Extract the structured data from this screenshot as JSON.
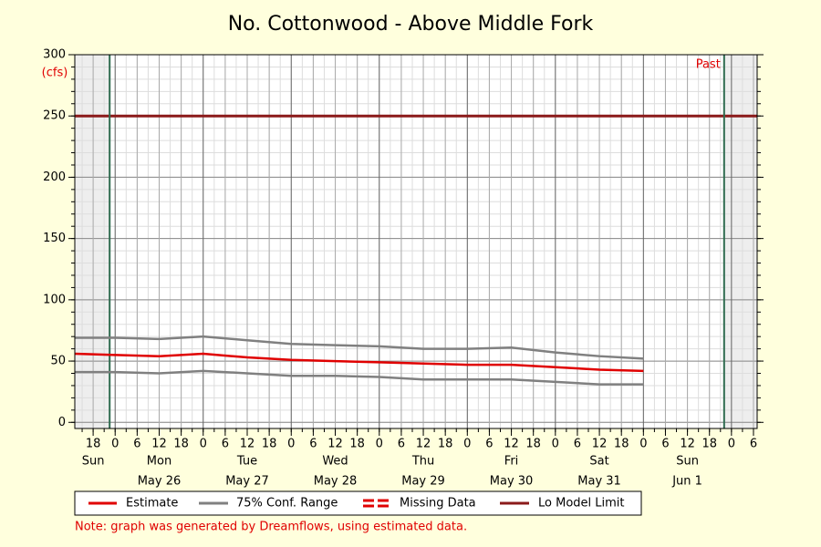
{
  "chart_data": {
    "type": "line",
    "title": "No. Cottonwood - Above Middle Fork",
    "y_unit": "(cfs)",
    "annotation": "Past",
    "note": "Note: graph was generated by Dreamflows, using estimated data.",
    "x": [
      13,
      24,
      36,
      48,
      60,
      72,
      84,
      96,
      108,
      120,
      132,
      144,
      156,
      168
    ],
    "series": [
      {
        "name": "Estimate",
        "color": "#e00000",
        "values": [
          56,
          55,
          54,
          56,
          53,
          51,
          50,
          49,
          48,
          47,
          47,
          45,
          43,
          42
        ]
      },
      {
        "name": "75% Conf. Range",
        "color": "#808080",
        "values": [
          69,
          69,
          68,
          70,
          67,
          64,
          63,
          62,
          60,
          60,
          61,
          57,
          54,
          52
        ],
        "values_low": [
          41,
          41,
          40,
          42,
          40,
          38,
          38,
          37,
          35,
          35,
          35,
          33,
          31,
          31
        ]
      }
    ],
    "missing_data": {
      "name": "Missing Data",
      "color": "#e00000"
    },
    "limit": {
      "name": "Lo Model Limit",
      "color": "#8b1a1a",
      "value": 250
    },
    "now_lines": [
      22.5,
      190
    ],
    "now_line_color": "#2e6b4f",
    "xlim": [
      13,
      199
    ],
    "ylim": [
      -5,
      300
    ],
    "yticks": [
      0,
      50,
      100,
      150,
      200,
      250,
      300
    ],
    "yminor_step": 10,
    "xminor_step": 3,
    "xticks": [
      18,
      {
        "value": 24,
        "label": "0"
      },
      {
        "value": 30,
        "label": "6"
      },
      {
        "value": 36,
        "label": "12"
      },
      {
        "value": 42,
        "label": "18"
      },
      {
        "value": 48,
        "label": "0"
      },
      {
        "value": 54,
        "label": "6"
      },
      {
        "value": 60,
        "label": "12"
      },
      {
        "value": 66,
        "label": "18"
      },
      {
        "value": 72,
        "label": "0"
      },
      {
        "value": 78,
        "label": "6"
      },
      {
        "value": 84,
        "label": "12"
      },
      {
        "value": 90,
        "label": "18"
      },
      {
        "value": 96,
        "label": "0"
      },
      {
        "value": 102,
        "label": "6"
      },
      {
        "value": 108,
        "label": "12"
      },
      {
        "value": 114,
        "label": "18"
      },
      {
        "value": 120,
        "label": "0"
      },
      {
        "value": 126,
        "label": "6"
      },
      {
        "value": 132,
        "label": "12"
      },
      {
        "value": 138,
        "label": "18"
      },
      {
        "value": 144,
        "label": "0"
      },
      {
        "value": 150,
        "label": "6"
      },
      {
        "value": 156,
        "label": "12"
      },
      {
        "value": 162,
        "label": "18"
      },
      {
        "value": 168,
        "label": "0"
      },
      {
        "value": 174,
        "label": "6"
      },
      {
        "value": 180,
        "label": "12"
      },
      {
        "value": 186,
        "label": "18"
      },
      {
        "value": 192,
        "label": "0"
      },
      {
        "value": 198,
        "label": "6"
      }
    ],
    "day_groups": [
      {
        "at": 18,
        "day": "Sun"
      },
      {
        "at": 36,
        "day": "Mon",
        "date": "May 26"
      },
      {
        "at": 60,
        "day": "Tue",
        "date": "May 27"
      },
      {
        "at": 84,
        "day": "Wed",
        "date": "May 28"
      },
      {
        "at": 108,
        "day": "Thu",
        "date": "May 29"
      },
      {
        "at": 132,
        "day": "Fri",
        "date": "May 30"
      },
      {
        "at": 156,
        "day": "Sat",
        "date": "May 31"
      },
      {
        "at": 180,
        "day": "Sun",
        "date": "Jun 1"
      }
    ],
    "grid": true
  }
}
